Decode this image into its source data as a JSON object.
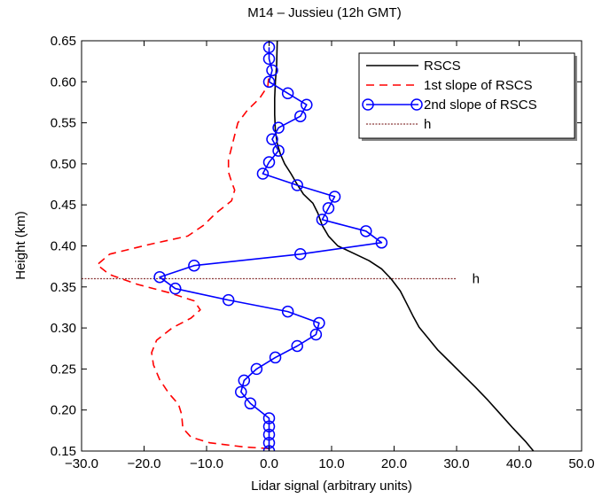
{
  "chart_data": {
    "type": "line",
    "title": "M14 – Jussieu (12h GMT)",
    "xlabel": "Lidar signal (arbitrary units)",
    "ylabel": "Height (km)",
    "xlim": [
      -30,
      50
    ],
    "ylim": [
      0.15,
      0.65
    ],
    "xticks": [
      "−30.0",
      "−20.0",
      "−10.0",
      "0.0",
      "10.0",
      "20.0",
      "30.0",
      "40.0",
      "50.0"
    ],
    "yticks": [
      "0.15",
      "0.20",
      "0.25",
      "0.30",
      "0.35",
      "0.40",
      "0.45",
      "0.50",
      "0.55",
      "0.60",
      "0.65"
    ],
    "grid": false,
    "legend_position": "top-right",
    "series": [
      {
        "name": "RSCS",
        "color": "#000000",
        "style": "solid",
        "marker": "none",
        "points": [
          [
            42.3,
            0.15
          ],
          [
            41.0,
            0.162
          ],
          [
            39.0,
            0.178
          ],
          [
            37.0,
            0.195
          ],
          [
            35.0,
            0.212
          ],
          [
            33.0,
            0.228
          ],
          [
            31.0,
            0.243
          ],
          [
            29.0,
            0.258
          ],
          [
            27.0,
            0.273
          ],
          [
            25.5,
            0.287
          ],
          [
            24.0,
            0.301
          ],
          [
            23.0,
            0.315
          ],
          [
            22.0,
            0.33
          ],
          [
            21.0,
            0.345
          ],
          [
            19.5,
            0.36
          ],
          [
            18.0,
            0.372
          ],
          [
            16.0,
            0.382
          ],
          [
            13.5,
            0.391
          ],
          [
            11.0,
            0.4
          ],
          [
            9.5,
            0.412
          ],
          [
            8.5,
            0.425
          ],
          [
            7.8,
            0.44
          ],
          [
            7.0,
            0.452
          ],
          [
            5.5,
            0.463
          ],
          [
            4.5,
            0.475
          ],
          [
            3.5,
            0.488
          ],
          [
            2.5,
            0.5
          ],
          [
            1.8,
            0.512
          ],
          [
            1.3,
            0.525
          ],
          [
            1.0,
            0.54
          ],
          [
            0.9,
            0.56
          ],
          [
            0.9,
            0.58
          ],
          [
            1.0,
            0.6
          ],
          [
            1.2,
            0.62
          ],
          [
            1.3,
            0.65
          ]
        ]
      },
      {
        "name": "1st slope of RSCS",
        "color": "#ff0000",
        "style": "dashed",
        "marker": "none",
        "points": [
          [
            0.0,
            0.153
          ],
          [
            -4.0,
            0.155
          ],
          [
            -9.5,
            0.16
          ],
          [
            -12.5,
            0.167
          ],
          [
            -13.8,
            0.178
          ],
          [
            -14.0,
            0.195
          ],
          [
            -14.5,
            0.207
          ],
          [
            -16.0,
            0.22
          ],
          [
            -17.5,
            0.237
          ],
          [
            -18.5,
            0.255
          ],
          [
            -18.8,
            0.27
          ],
          [
            -18.0,
            0.285
          ],
          [
            -15.5,
            0.3
          ],
          [
            -12.5,
            0.312
          ],
          [
            -11.0,
            0.322
          ],
          [
            -12.0,
            0.333
          ],
          [
            -16.0,
            0.343
          ],
          [
            -21.0,
            0.353
          ],
          [
            -25.5,
            0.365
          ],
          [
            -27.5,
            0.377
          ],
          [
            -25.5,
            0.39
          ],
          [
            -19.0,
            0.402
          ],
          [
            -13.0,
            0.412
          ],
          [
            -10.5,
            0.425
          ],
          [
            -8.5,
            0.44
          ],
          [
            -6.0,
            0.455
          ],
          [
            -5.5,
            0.468
          ],
          [
            -6.0,
            0.478
          ],
          [
            -6.5,
            0.49
          ],
          [
            -6.5,
            0.505
          ],
          [
            -6.0,
            0.52
          ],
          [
            -5.5,
            0.535
          ],
          [
            -5.0,
            0.55
          ],
          [
            -3.5,
            0.565
          ],
          [
            -1.5,
            0.58
          ],
          [
            -0.2,
            0.595
          ],
          [
            0.0,
            0.61
          ]
        ]
      },
      {
        "name": "2nd slope of RSCS",
        "color": "#0000ff",
        "style": "solid",
        "marker": "circle",
        "points": [
          [
            0.0,
            0.15
          ],
          [
            0.0,
            0.16
          ],
          [
            0.0,
            0.17
          ],
          [
            0.0,
            0.18
          ],
          [
            0.0,
            0.19
          ],
          [
            -3.0,
            0.208
          ],
          [
            -4.5,
            0.222
          ],
          [
            -4.0,
            0.236
          ],
          [
            -2.0,
            0.25
          ],
          [
            1.0,
            0.264
          ],
          [
            4.5,
            0.278
          ],
          [
            7.5,
            0.292
          ],
          [
            8.0,
            0.306
          ],
          [
            3.0,
            0.32
          ],
          [
            -6.5,
            0.334
          ],
          [
            -15.0,
            0.348
          ],
          [
            -17.5,
            0.362
          ],
          [
            -12.0,
            0.376
          ],
          [
            5.0,
            0.39
          ],
          [
            18.0,
            0.404
          ],
          [
            15.5,
            0.418
          ],
          [
            8.5,
            0.432
          ],
          [
            9.5,
            0.446
          ],
          [
            10.5,
            0.46
          ],
          [
            4.5,
            0.474
          ],
          [
            -1.0,
            0.488
          ],
          [
            0.0,
            0.502
          ],
          [
            1.5,
            0.516
          ],
          [
            0.5,
            0.53
          ],
          [
            1.5,
            0.544
          ],
          [
            5.0,
            0.558
          ],
          [
            6.0,
            0.572
          ],
          [
            3.0,
            0.586
          ],
          [
            0.0,
            0.6
          ],
          [
            0.5,
            0.614
          ],
          [
            0.0,
            0.628
          ],
          [
            0.0,
            0.642
          ]
        ]
      },
      {
        "name": "h",
        "color": "#8b3a3a",
        "style": "dotted",
        "marker": "none",
        "points": [
          [
            -30.0,
            0.36
          ],
          [
            30.0,
            0.36
          ]
        ]
      }
    ],
    "annotations": [
      {
        "text": "h",
        "x": 32.5,
        "y": 0.36
      }
    ]
  }
}
